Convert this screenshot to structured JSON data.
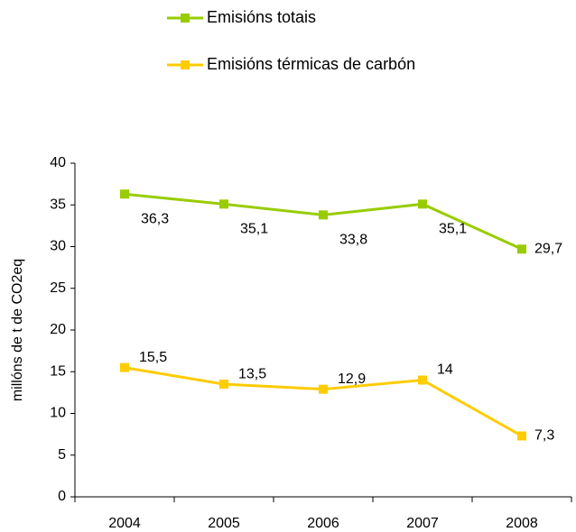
{
  "chart_data": {
    "type": "line",
    "y_label": "millóns de t de CO2eq",
    "categories": [
      "2004",
      "2005",
      "2006",
      "2007",
      "2008"
    ],
    "series": [
      {
        "name": "Emisións totais",
        "color": "#99cc00",
        "values": [
          36.3,
          35.1,
          33.8,
          35.1,
          29.7
        ],
        "value_labels": [
          "36,3",
          "35,1",
          "33,8",
          "35,1",
          "29,7"
        ]
      },
      {
        "name": "Emisións térmicas de carbón",
        "color": "#ffcc00",
        "values": [
          15.5,
          13.5,
          12.9,
          14,
          7.3
        ],
        "value_labels": [
          "15,5",
          "13,5",
          "12,9",
          "14",
          "7,3"
        ]
      }
    ],
    "ylim": [
      0,
      40
    ],
    "yticks": [
      0,
      5,
      10,
      15,
      20,
      25,
      30,
      35,
      40
    ],
    "grid": false,
    "legend": "top"
  }
}
